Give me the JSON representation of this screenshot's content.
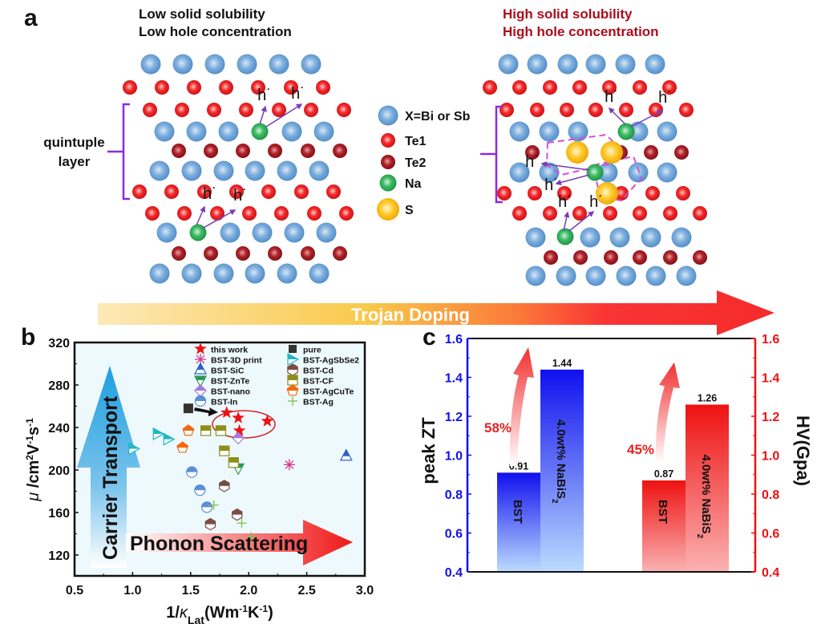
{
  "panel_a": {
    "letter": "a",
    "left_title": [
      "Low solid solubility",
      "Low hole concentration"
    ],
    "right_title": [
      "High solid solubility",
      "High hole concentration"
    ],
    "bracket_label": [
      "quintuple",
      "layer"
    ],
    "hole_label": "h",
    "legend": [
      {
        "label": "X=Bi or Sb",
        "color": "#5b9bd5",
        "atom": "X"
      },
      {
        "label": "Te1",
        "color": "#e8141c",
        "atom": "Te1"
      },
      {
        "label": "Te2",
        "color": "#a8151c",
        "atom": "Te2"
      },
      {
        "label": "Na",
        "color": "#22a94f",
        "atom": "Na"
      },
      {
        "label": "S",
        "color": "#f5b800",
        "atom": "S"
      }
    ],
    "arrow_label": "Trojan Doping"
  },
  "chart_data": [
    {
      "type": "scatter",
      "panel": "b",
      "xlabel": "1/κLat(Wm-1K-1)",
      "xlabel_parts": {
        "pre": "1/",
        "kappa": "κ",
        "sub": "Lat",
        "post": "(Wm",
        "sup1": "-1",
        "mid": "K",
        "sup2": "-1",
        "end": ")"
      },
      "ylabel": "μ /cm2V-1s-1",
      "ylabel_parts": {
        "mu": "μ",
        "a": " /cm",
        "sup1": "2",
        "b": "V",
        "sup2": "-1",
        "c": "s",
        "sup3": "-1"
      },
      "xlim": [
        0.5,
        3.0
      ],
      "ylim": [
        100,
        320
      ],
      "xticks": [
        0.5,
        1.0,
        1.5,
        2.0,
        2.5,
        3.0
      ],
      "xtick_labels": [
        "0.5",
        "1.0",
        "1.5",
        "2.0",
        "2.5",
        "3.0"
      ],
      "yticks": [
        120,
        160,
        200,
        240,
        280,
        320
      ],
      "ytick_labels": [
        "120",
        "160",
        "200",
        "240",
        "280",
        "320"
      ],
      "grid": false,
      "legend_position": "top-right",
      "annotations": {
        "vertical_arrow": "Carrier Transport",
        "horizontal_arrow": "Phonon Scattering"
      },
      "series": [
        {
          "name": "this work",
          "marker": "star",
          "color": "#ee1111",
          "points": [
            [
              1.81,
              254
            ],
            [
              1.91,
              249
            ],
            [
              2.16,
              246
            ],
            [
              1.92,
              237
            ]
          ]
        },
        {
          "name": "pure",
          "marker": "square",
          "color": "#333333",
          "points": [
            [
              1.48,
              258
            ]
          ]
        },
        {
          "name": "BST-3D print",
          "marker": "asterisk",
          "color": "#d6338a",
          "points": [
            [
              2.35,
              205
            ]
          ]
        },
        {
          "name": "BST-AgSbSe2",
          "marker": "triangle-right",
          "color": "#1fb8c4",
          "points": [
            [
              1.01,
              220
            ],
            [
              1.22,
              234
            ],
            [
              1.31,
              229
            ]
          ]
        },
        {
          "name": "BST-SiC",
          "marker": "triangle-up",
          "color": "#2a64c8",
          "points": [
            [
              2.84,
              213
            ]
          ]
        },
        {
          "name": "BST-Cd",
          "marker": "hexagon",
          "color": "#7a4d44",
          "points": [
            [
              1.79,
              185
            ],
            [
              1.9,
              158
            ],
            [
              1.67,
              149
            ]
          ]
        },
        {
          "name": "BST-ZnTe",
          "marker": "triangle-down",
          "color": "#2f9a5a",
          "points": [
            [
              1.91,
              202
            ]
          ]
        },
        {
          "name": "BST-CF",
          "marker": "square-half",
          "color": "#8f8f1a",
          "points": [
            [
              1.63,
              237
            ],
            [
              1.76,
              237
            ],
            [
              1.79,
              218
            ],
            [
              1.87,
              207
            ]
          ]
        },
        {
          "name": "BST-nano",
          "marker": "diamond",
          "color": "#a678d8",
          "points": [
            [
              1.91,
              230
            ]
          ]
        },
        {
          "name": "BST-AgCuTe",
          "marker": "pentagon",
          "color": "#f06a10",
          "points": [
            [
              1.48,
              237
            ],
            [
              1.43,
              221
            ]
          ]
        },
        {
          "name": "BST-In",
          "marker": "circle",
          "color": "#5b8fd6",
          "points": [
            [
              1.51,
              198
            ],
            [
              1.58,
              181
            ],
            [
              1.64,
              165
            ]
          ]
        },
        {
          "name": "BST-Ag",
          "marker": "plus",
          "color": "#7cc04a",
          "points": [
            [
              1.7,
              167
            ],
            [
              1.94,
              150
            ],
            [
              2.02,
              137
            ]
          ]
        }
      ]
    },
    {
      "type": "bar",
      "panel": "c",
      "categories": [
        "BST",
        "4.0wt% NaBiS2",
        "BST",
        "4.0wt% NaBiS2"
      ],
      "series": [
        {
          "name": "peak ZT",
          "axis": "left",
          "color": "#1010ee",
          "values": [
            0.91,
            1.44
          ],
          "labels": [
            "0.91",
            "1.44"
          ],
          "bar_text": [
            "BST",
            "4.0wt% NaBiS2"
          ],
          "increase": "58%"
        },
        {
          "name": "HV(Gpa)",
          "axis": "right",
          "color": "#ee1111",
          "values": [
            0.87,
            1.26
          ],
          "labels": [
            "0.87",
            "1.26"
          ],
          "bar_text": [
            "BST",
            "4.0wt% NaBiS2"
          ],
          "increase": "45%"
        }
      ],
      "ylabel": "peak ZT",
      "y2label": "HV(Gpa)",
      "ylim": [
        0.4,
        1.6
      ],
      "y2lim": [
        0.4,
        1.6
      ],
      "yticks": [
        0.4,
        0.6,
        0.8,
        1.0,
        1.2,
        1.4,
        1.6
      ],
      "ytick_labels": [
        "0.4",
        "0.6",
        "0.8",
        "1.0",
        "1.2",
        "1.4",
        "1.6"
      ],
      "bar_text_parts": {
        "main": "4.0wt% NaBiS",
        "sub": "2",
        "base": "BST"
      }
    }
  ],
  "panel_b": {
    "letter": "b"
  },
  "panel_c": {
    "letter": "c"
  }
}
